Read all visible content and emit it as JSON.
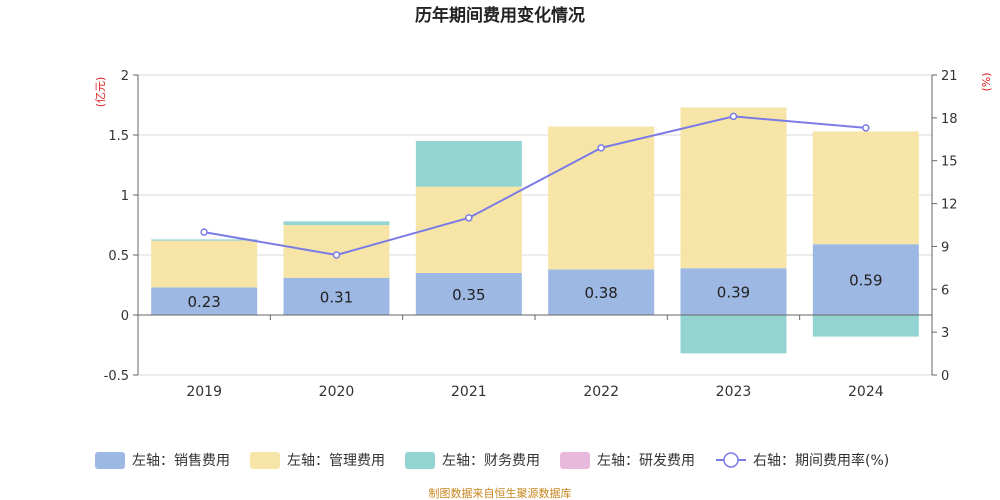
{
  "chart_data": {
    "type": "bar",
    "title": "历年期间费用变化情况",
    "categories": [
      "2019",
      "2020",
      "2021",
      "2022",
      "2023",
      "2024"
    ],
    "left_axis": {
      "unit_label": "(亿元)",
      "ylim": [
        -0.5,
        2
      ],
      "ticks": [
        "-0.5",
        "0",
        "0.5",
        "1",
        "1.5",
        "2"
      ]
    },
    "right_axis": {
      "unit_label": "(%)",
      "ylim": [
        0,
        21
      ],
      "ticks": [
        "0",
        "3",
        "6",
        "9",
        "12",
        "15",
        "18",
        "21"
      ]
    },
    "series": [
      {
        "name": "左轴：销售费用",
        "axis": "left",
        "kind": "bar",
        "color": "#9db8e3",
        "values": [
          0.23,
          0.31,
          0.35,
          0.38,
          0.39,
          0.59
        ],
        "labels": [
          "0.23",
          "0.31",
          "0.35",
          "0.38",
          "0.39",
          "0.59"
        ]
      },
      {
        "name": "左轴：管理费用",
        "axis": "left",
        "kind": "bar",
        "color": "#f6e5a6",
        "values": [
          0.39,
          0.44,
          0.72,
          1.19,
          1.34,
          0.94
        ]
      },
      {
        "name": "左轴：财务费用",
        "axis": "left",
        "kind": "bar",
        "color": "#93d3d2",
        "values": [
          0.01,
          0.03,
          0.38,
          0.0,
          -0.32,
          -0.18
        ]
      },
      {
        "name": "左轴：研发费用",
        "axis": "left",
        "kind": "bar",
        "color": "#e8b9dc",
        "values": [
          0,
          0,
          0,
          0,
          0,
          0
        ]
      },
      {
        "name": "右轴：期间费用率(%)",
        "axis": "right",
        "kind": "line",
        "color": "#7b7be6",
        "values": [
          10.0,
          8.4,
          11.0,
          15.9,
          18.1,
          17.3
        ]
      }
    ],
    "legend_position": "bottom",
    "grid": true
  },
  "source": "制图数据来自恒生聚源数据库"
}
